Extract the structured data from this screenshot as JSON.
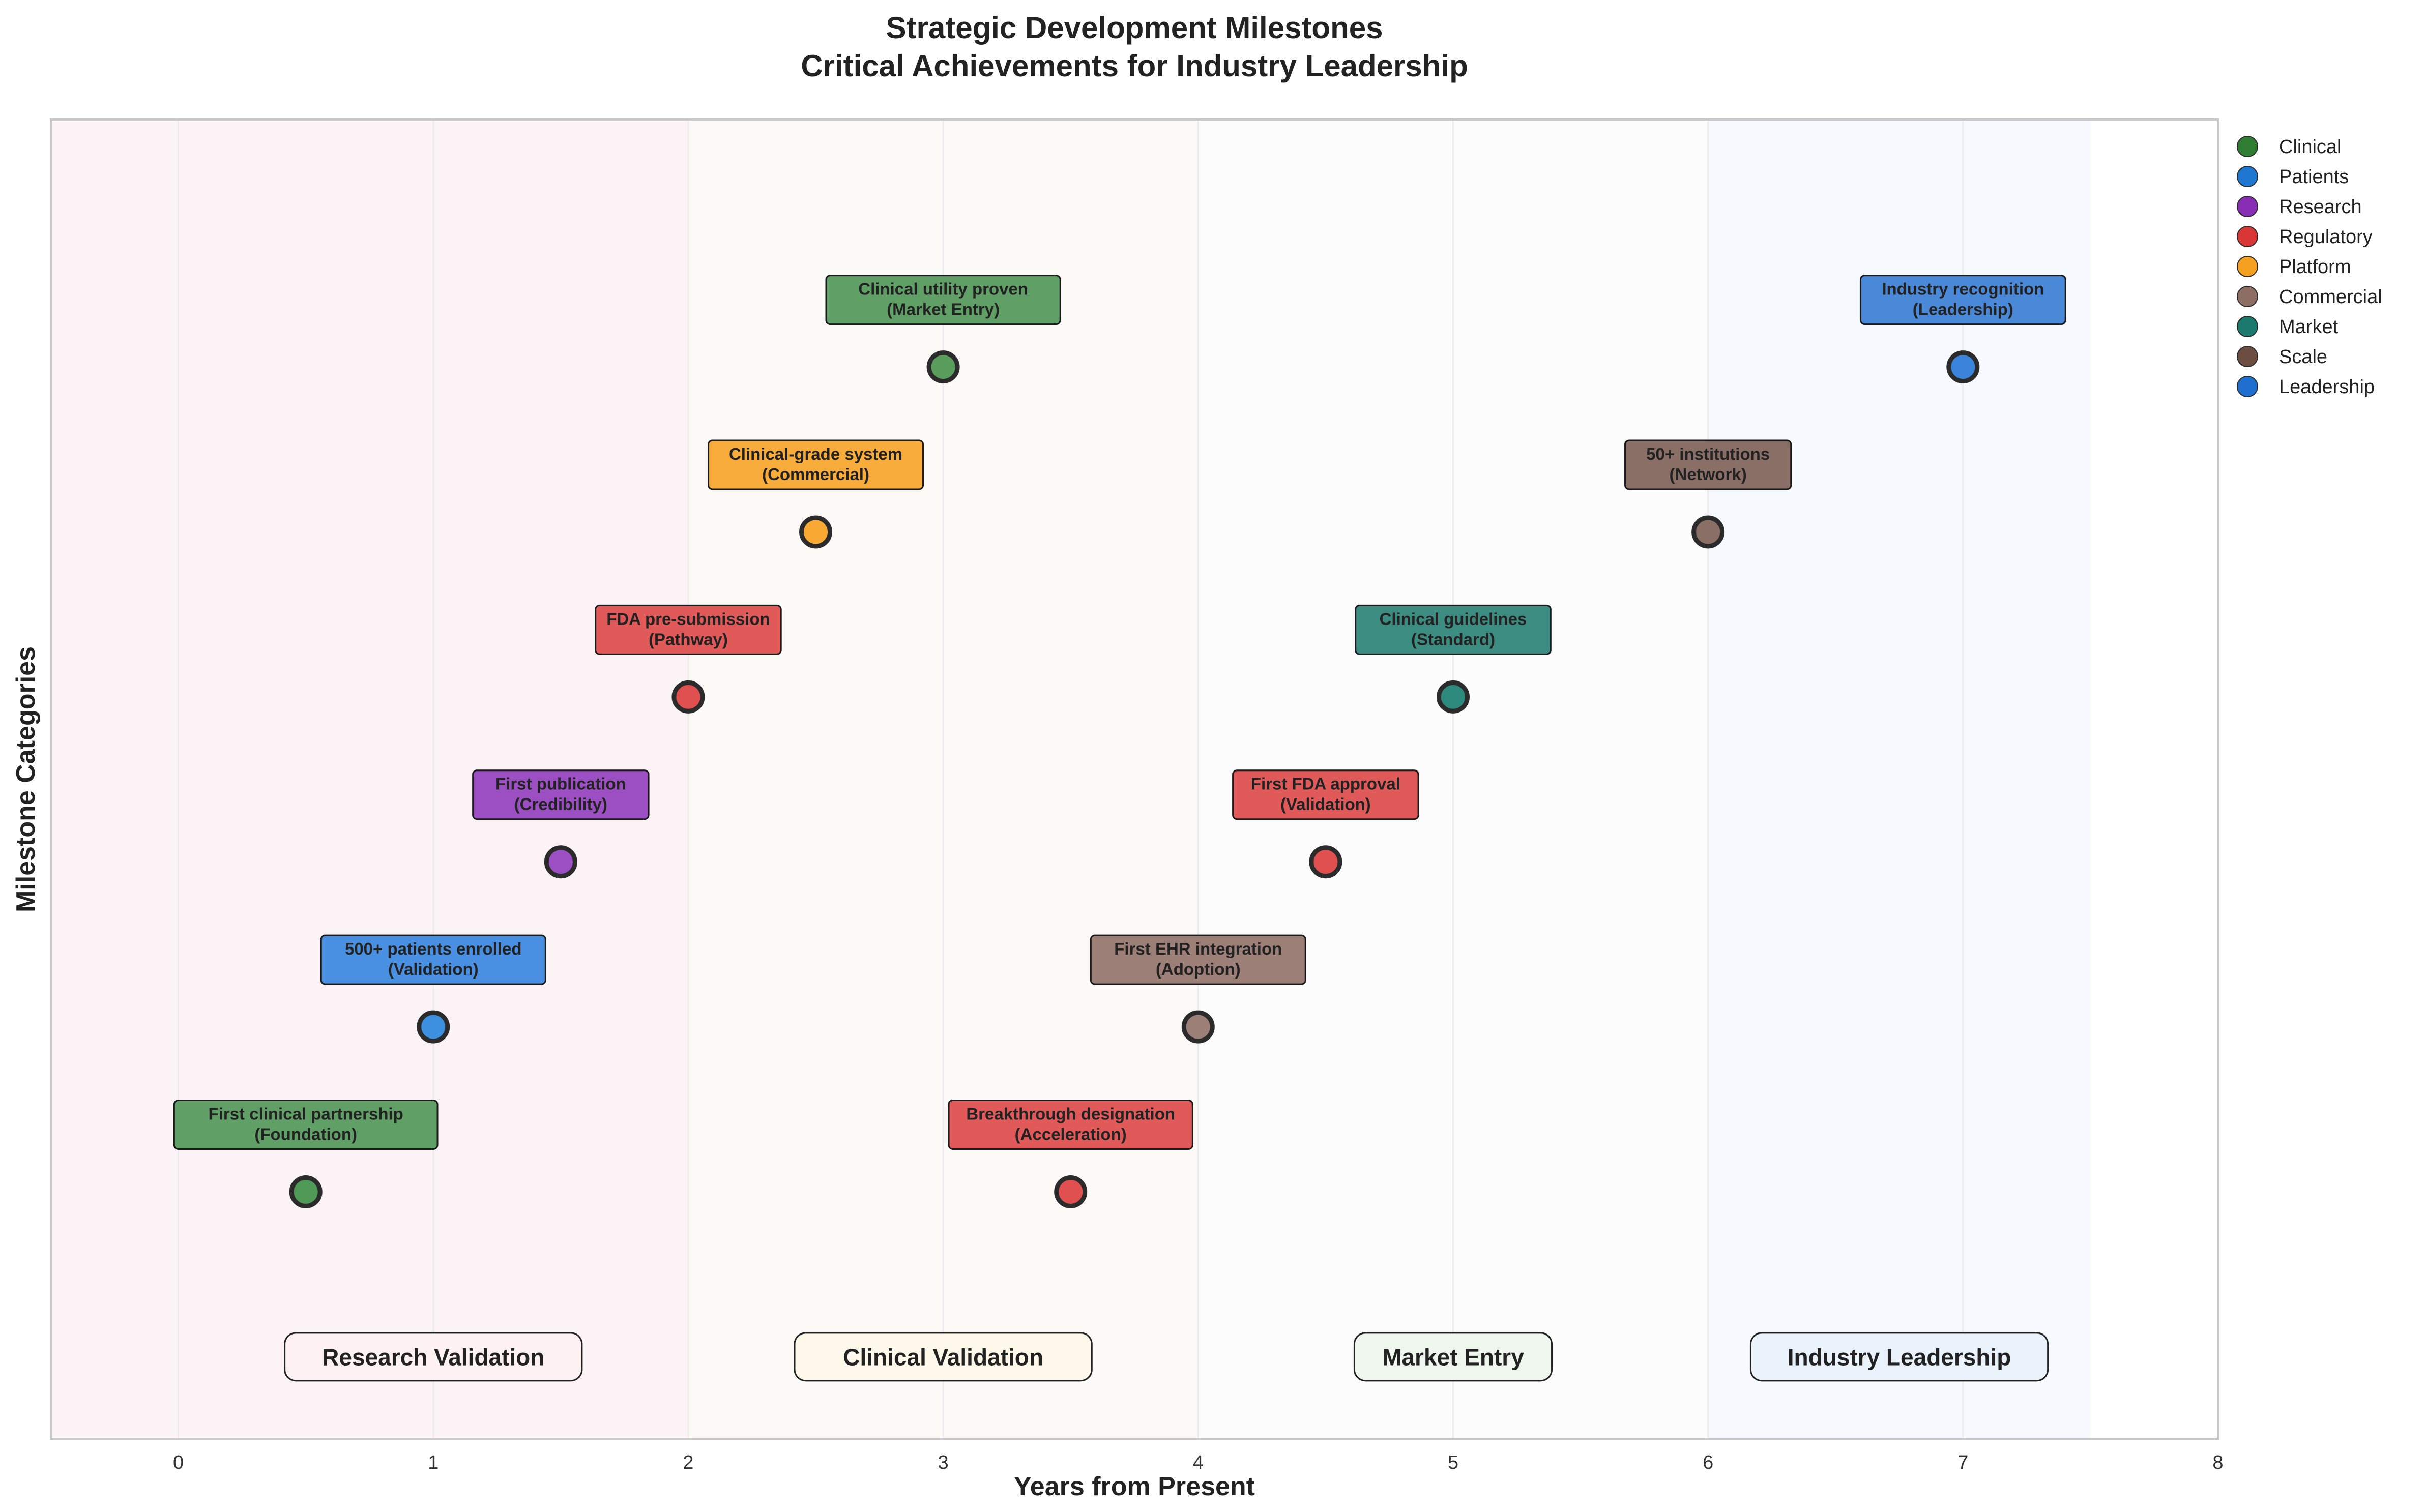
{
  "chart_data": {
    "type": "scatter",
    "title": "Strategic Development Milestones",
    "subtitle": "Critical Achievements for Industry Leadership",
    "xlabel": "Years from Present",
    "ylabel": "Milestone Categories",
    "xlim": [
      -0.5,
      8
    ],
    "ylim": [
      0.5,
      8.5
    ],
    "x_ticks": [
      0,
      1,
      2,
      3,
      4,
      5,
      6,
      7,
      8
    ],
    "grid": true,
    "legend_position": "outside top-right",
    "categories": [
      {
        "name": "Clinical",
        "color": "#2e7d32"
      },
      {
        "name": "Patients",
        "color": "#1e78d2"
      },
      {
        "name": "Research",
        "color": "#8a2db5"
      },
      {
        "name": "Regulatory",
        "color": "#d93636"
      },
      {
        "name": "Platform",
        "color": "#f5a020"
      },
      {
        "name": "Commercial",
        "color": "#8d6e63"
      },
      {
        "name": "Market",
        "color": "#1a7a6e"
      },
      {
        "name": "Scale",
        "color": "#6d4c41"
      },
      {
        "name": "Leadership",
        "color": "#1e6fcf"
      }
    ],
    "milestones": [
      {
        "x": 0.5,
        "y": 2,
        "category": "Clinical",
        "label": "First clinical partnership",
        "sublabel": "(Foundation)",
        "color": "#4e9a56",
        "box": "#60a066"
      },
      {
        "x": 1.0,
        "y": 3,
        "category": "Patients",
        "label": "500+ patients enrolled",
        "sublabel": "(Validation)",
        "color": "#3d8fe0",
        "box": "#4a90e2"
      },
      {
        "x": 1.5,
        "y": 4,
        "category": "Research",
        "label": "First publication",
        "sublabel": "(Credibility)",
        "color": "#9b4fc2",
        "box": "#9b4fc2"
      },
      {
        "x": 2.0,
        "y": 5,
        "category": "Regulatory",
        "label": "FDA pre-submission",
        "sublabel": "(Pathway)",
        "color": "#e05050",
        "box": "#e05a5a"
      },
      {
        "x": 2.5,
        "y": 6,
        "category": "Platform",
        "label": "Clinical-grade system",
        "sublabel": "(Commercial)",
        "color": "#f7a934",
        "box": "#f8ac3c"
      },
      {
        "x": 3.0,
        "y": 7,
        "category": "Clinical",
        "label": "Clinical utility proven",
        "sublabel": "(Market Entry)",
        "color": "#5a9e5e",
        "box": "#60a066"
      },
      {
        "x": 3.5,
        "y": 2,
        "category": "Regulatory",
        "label": "Breakthrough designation",
        "sublabel": "(Acceleration)",
        "color": "#e05050",
        "box": "#e05a5a"
      },
      {
        "x": 4.0,
        "y": 3,
        "category": "Commercial",
        "label": "First EHR integration",
        "sublabel": "(Adoption)",
        "color": "#9c8078",
        "box": "#9c8078"
      },
      {
        "x": 4.5,
        "y": 4,
        "category": "Regulatory",
        "label": "First FDA approval",
        "sublabel": "(Validation)",
        "color": "#e05050",
        "box": "#e05a5a"
      },
      {
        "x": 5.0,
        "y": 5,
        "category": "Market",
        "label": "Clinical guidelines",
        "sublabel": "(Standard)",
        "color": "#2f8a7e",
        "box": "#3d8c82"
      },
      {
        "x": 6.0,
        "y": 6,
        "category": "Scale",
        "label": "50+ institutions",
        "sublabel": "(Network)",
        "color": "#8a6f66",
        "box": "#8a6f66"
      },
      {
        "x": 7.0,
        "y": 7,
        "category": "Leadership",
        "label": "Industry recognition",
        "sublabel": "(Leadership)",
        "color": "#3a84dc",
        "box": "#4a88d8"
      }
    ],
    "phases": [
      {
        "label": "Research Validation",
        "x_start": -0.5,
        "x_end": 2,
        "center": 1,
        "bg": "#fbf3f6",
        "label_bg": "#fdf1f4"
      },
      {
        "label": "Clinical Validation",
        "x_start": 2,
        "x_end": 4,
        "center": 3,
        "bg": "#fcfaf6",
        "label_bg": "#fdf8ea"
      },
      {
        "label": "Market Entry",
        "x_start": 4,
        "x_end": 6,
        "center": 5,
        "bg": "#fbfcfb",
        "label_bg": "#eef6ee"
      },
      {
        "label": "Industry Leadership",
        "x_start": 6,
        "x_end": 7.5,
        "center": 6.75,
        "bg": "#f6f9fd",
        "label_bg": "#eaf3fc"
      }
    ],
    "phase_label_y": 1
  }
}
